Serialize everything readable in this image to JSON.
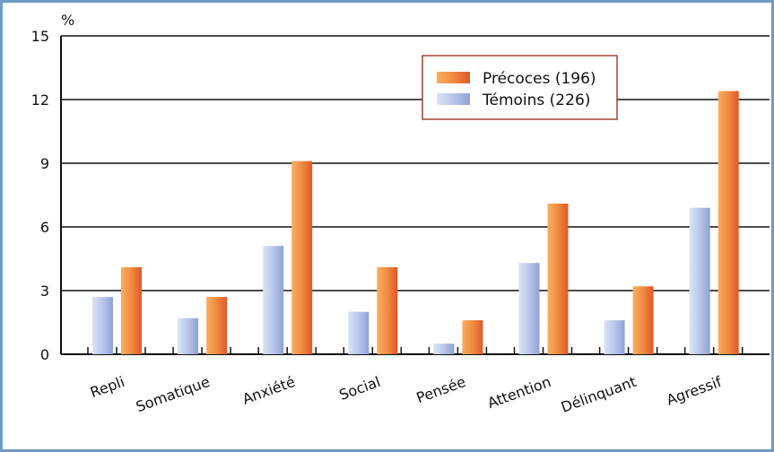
{
  "chart_data": {
    "type": "bar",
    "ylabel": "%",
    "ylim": [
      0,
      15
    ],
    "yticks": [
      0,
      3,
      6,
      9,
      12,
      15
    ],
    "grid": true,
    "legend_placement": "top-right",
    "categories": [
      "Repli",
      "Somatique",
      "Anxiété",
      "Social",
      "Pensée",
      "Attention",
      "Délinquant",
      "Agressif"
    ],
    "series": [
      {
        "name": "Témoins (226)",
        "color": "#a9b9e0",
        "values": [
          2.7,
          1.7,
          5.1,
          2.0,
          0.5,
          4.3,
          1.6,
          6.9
        ]
      },
      {
        "name": "Précoces (196)",
        "color": "#ee7a3a",
        "values": [
          4.1,
          2.7,
          9.1,
          4.1,
          1.6,
          7.1,
          3.2,
          12.4
        ]
      }
    ],
    "legend_order": [
      1,
      0
    ]
  }
}
